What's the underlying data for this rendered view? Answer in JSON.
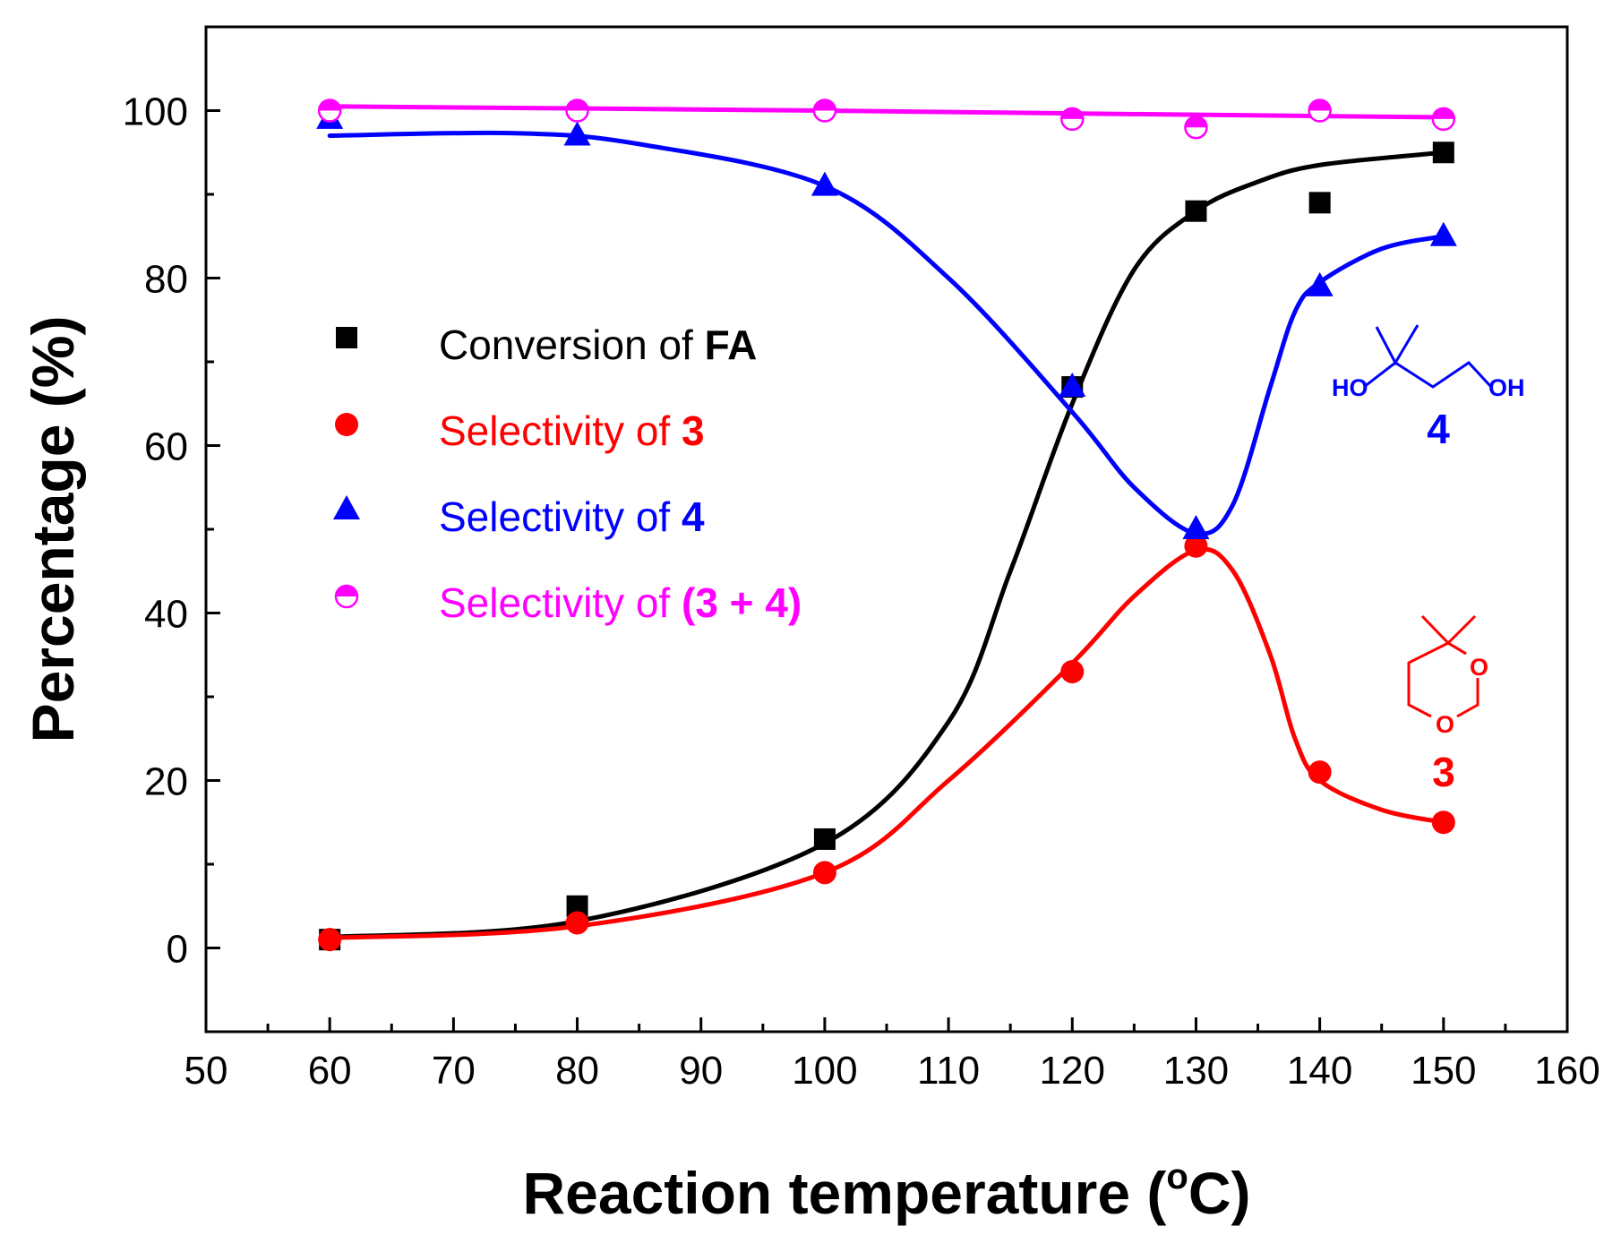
{
  "chart_data": {
    "type": "scatter",
    "title": "",
    "xlabel": "Reaction temperature (°C)",
    "xlabel_parts": {
      "main": "Reaction temperature (",
      "sup": "o",
      "unit": "C)"
    },
    "ylabel": "Percentage (%)",
    "xlim": [
      50,
      160
    ],
    "ylim": [
      -10,
      110
    ],
    "xticks": [
      50,
      60,
      70,
      80,
      90,
      100,
      110,
      120,
      130,
      140,
      150,
      160
    ],
    "yticks": [
      0,
      20,
      40,
      60,
      80,
      100
    ],
    "grid": false,
    "legend_position": "center-left",
    "x": [
      60,
      80,
      100,
      120,
      130,
      140,
      150
    ],
    "series": [
      {
        "name": "Conversion of FA",
        "label_prefix": "Conversion of ",
        "label_bold": "FA",
        "marker": "square",
        "color": "#000000",
        "values": [
          1,
          5,
          13,
          67,
          88,
          89,
          95
        ],
        "curve": [
          [
            60,
            1.3
          ],
          [
            80,
            3.2
          ],
          [
            100,
            12.5
          ],
          [
            110,
            27
          ],
          [
            115,
            45
          ],
          [
            120,
            65
          ],
          [
            125,
            81
          ],
          [
            130,
            88
          ],
          [
            135,
            91.5
          ],
          [
            140,
            93.5
          ],
          [
            150,
            95
          ]
        ]
      },
      {
        "name": "Selectivity of 3",
        "label_prefix": "Selectivity of ",
        "label_bold": "3",
        "marker": "circle",
        "color": "#ff0000",
        "values": [
          1,
          3,
          9,
          33,
          48,
          21,
          15
        ],
        "curve": [
          [
            60,
            1.2
          ],
          [
            80,
            2.6
          ],
          [
            100,
            9
          ],
          [
            110,
            20
          ],
          [
            120,
            34
          ],
          [
            125,
            42
          ],
          [
            130,
            47.5
          ],
          [
            133,
            45
          ],
          [
            136,
            35
          ],
          [
            138,
            25
          ],
          [
            140,
            20
          ],
          [
            145,
            16.5
          ],
          [
            150,
            15
          ]
        ]
      },
      {
        "name": "Selectivity of 4",
        "label_prefix": "Selectivity of ",
        "label_bold": "4",
        "marker": "triangle",
        "color": "#0000ff",
        "values": [
          99,
          97,
          91,
          67,
          50,
          79,
          85
        ],
        "curve": [
          [
            60,
            97
          ],
          [
            75,
            97.3
          ],
          [
            85,
            96
          ],
          [
            100,
            91
          ],
          [
            110,
            80
          ],
          [
            120,
            64
          ],
          [
            125,
            55
          ],
          [
            130,
            49.5
          ],
          [
            133,
            53
          ],
          [
            136,
            67
          ],
          [
            138,
            76
          ],
          [
            140,
            79.5
          ],
          [
            145,
            83.5
          ],
          [
            150,
            85
          ]
        ]
      },
      {
        "name": "Selectivity of (3 + 4)",
        "label_prefix": "Selectivity of ",
        "label_bold": "(3 + 4)",
        "marker": "half-circle",
        "color": "#ff00ff",
        "values": [
          100,
          100,
          100,
          99,
          98,
          100,
          99
        ],
        "curve": [
          [
            60,
            100.5
          ],
          [
            100,
            100
          ],
          [
            130,
            99.5
          ],
          [
            150,
            99.2
          ]
        ]
      }
    ],
    "annotations": [
      {
        "id": "compound-4",
        "label": "4",
        "color": "#0000ff",
        "atoms": [
          "HO",
          "OH"
        ]
      },
      {
        "id": "compound-3",
        "label": "3",
        "color": "#ff0000",
        "atoms": [
          "O",
          "O"
        ]
      }
    ]
  }
}
